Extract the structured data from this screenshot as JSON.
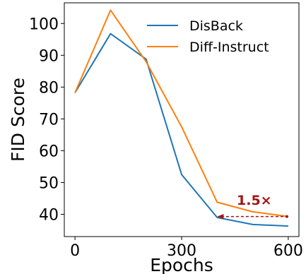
{
  "chart_data": {
    "type": "line",
    "xlabel": "Epochs",
    "ylabel": "FID Score",
    "x": [
      0,
      100,
      200,
      300,
      400,
      500,
      600
    ],
    "xticks": [
      0,
      300,
      600
    ],
    "yticks": [
      40,
      50,
      60,
      70,
      80,
      90,
      100
    ],
    "xlim": [
      -30,
      630
    ],
    "ylim": [
      33,
      106.5
    ],
    "grid": false,
    "legend_position": "top-right",
    "series": [
      {
        "name": "DisBack",
        "color": "#1f77b4",
        "values": [
          78.2,
          96.8,
          88.8,
          52.5,
          39.0,
          36.8,
          36.3
        ]
      },
      {
        "name": "Diff-Instruct",
        "color": "#ff7f0e",
        "values": [
          78.2,
          104.2,
          88.0,
          67.5,
          43.8,
          40.8,
          39.3
        ]
      }
    ],
    "annotation": {
      "text": "1.5×",
      "color": "#a31515",
      "arrow_from_x": 600,
      "arrow_to_x": 400,
      "arrow_y": 39.3
    }
  }
}
